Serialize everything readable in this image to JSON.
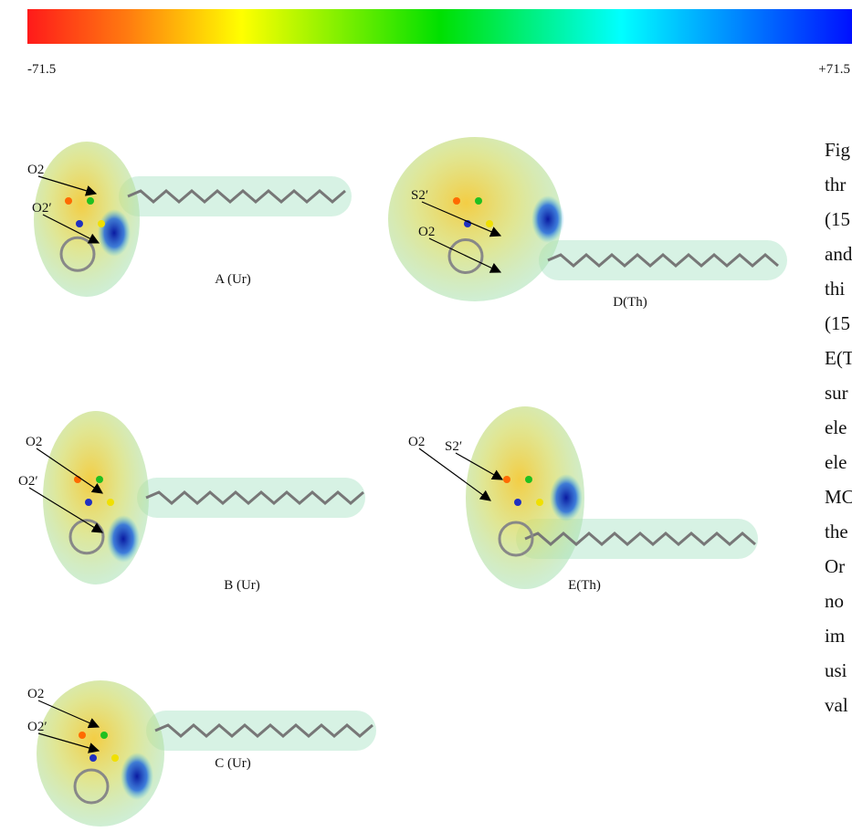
{
  "colorbar": {
    "min_label": "-71.5",
    "max_label": "+71.5"
  },
  "panels": [
    {
      "caption": "A (Ur)",
      "labels": [
        "O2",
        "O2′"
      ]
    },
    {
      "caption": "D(Th)",
      "labels": [
        "S2′",
        "O2"
      ]
    },
    {
      "caption": "B (Ur)",
      "labels": [
        "O2",
        "O2′"
      ]
    },
    {
      "caption": "E(Th)",
      "labels": [
        "S2′",
        "O2"
      ]
    },
    {
      "caption": "C (Ur)",
      "labels": [
        "O2",
        "O2′"
      ]
    }
  ],
  "side_text": [
    "Fig",
    "thr",
    "(15",
    "and",
    "thi",
    "(15",
    "E(T",
    "sur",
    "ele",
    "ele",
    "MC",
    "the",
    "Or",
    "no",
    "im",
    "usi",
    "val"
  ]
}
